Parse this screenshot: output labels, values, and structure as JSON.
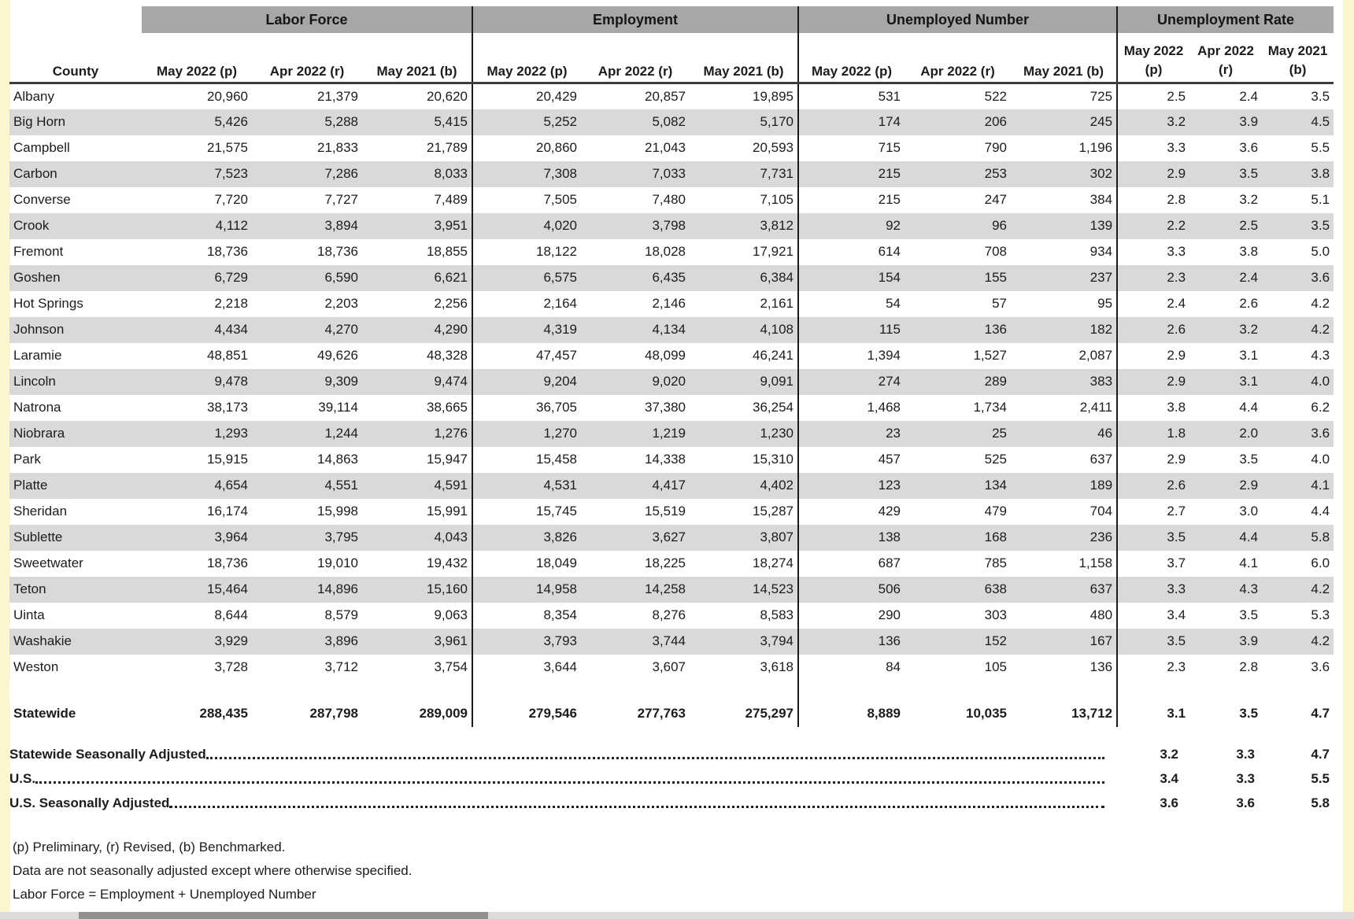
{
  "colors": {
    "page_bg": "#ffffff",
    "edge_yellow": "#fbf6cd",
    "band_gray": "#a7a7a7",
    "stripe": "#d9d9d9",
    "divider": "#1a1a1a",
    "underline": "#3d3d3d",
    "leader_dots": "#222222",
    "text": "#1c1c1c",
    "bottom_light": "#dcdcdc",
    "bottom_dark": "#8f8f8f"
  },
  "table": {
    "county_header": "County",
    "groups": [
      {
        "label": "Labor Force"
      },
      {
        "label": "Employment"
      },
      {
        "label": "Unemployed Number"
      },
      {
        "label": "Unemployment Rate"
      }
    ],
    "col_headers": [
      "May 2022 (p)",
      "Apr 2022 (r)",
      "May 2021 (b)"
    ],
    "rate_col_headers": [
      {
        "line1": "May 2022",
        "line2": "(p)"
      },
      {
        "line1": "Apr 2022",
        "line2": "(r)"
      },
      {
        "line1": "May 2021",
        "line2": "(b)"
      }
    ],
    "rows": [
      {
        "county": "Albany",
        "values": [
          "20,960",
          "21,379",
          "20,620",
          "20,429",
          "20,857",
          "19,895",
          "531",
          "522",
          "725",
          "2.5",
          "2.4",
          "3.5"
        ]
      },
      {
        "county": "Big Horn",
        "values": [
          "5,426",
          "5,288",
          "5,415",
          "5,252",
          "5,082",
          "5,170",
          "174",
          "206",
          "245",
          "3.2",
          "3.9",
          "4.5"
        ]
      },
      {
        "county": "Campbell",
        "values": [
          "21,575",
          "21,833",
          "21,789",
          "20,860",
          "21,043",
          "20,593",
          "715",
          "790",
          "1,196",
          "3.3",
          "3.6",
          "5.5"
        ]
      },
      {
        "county": "Carbon",
        "values": [
          "7,523",
          "7,286",
          "8,033",
          "7,308",
          "7,033",
          "7,731",
          "215",
          "253",
          "302",
          "2.9",
          "3.5",
          "3.8"
        ]
      },
      {
        "county": "Converse",
        "values": [
          "7,720",
          "7,727",
          "7,489",
          "7,505",
          "7,480",
          "7,105",
          "215",
          "247",
          "384",
          "2.8",
          "3.2",
          "5.1"
        ]
      },
      {
        "county": "Crook",
        "values": [
          "4,112",
          "3,894",
          "3,951",
          "4,020",
          "3,798",
          "3,812",
          "92",
          "96",
          "139",
          "2.2",
          "2.5",
          "3.5"
        ]
      },
      {
        "county": "Fremont",
        "values": [
          "18,736",
          "18,736",
          "18,855",
          "18,122",
          "18,028",
          "17,921",
          "614",
          "708",
          "934",
          "3.3",
          "3.8",
          "5.0"
        ]
      },
      {
        "county": "Goshen",
        "values": [
          "6,729",
          "6,590",
          "6,621",
          "6,575",
          "6,435",
          "6,384",
          "154",
          "155",
          "237",
          "2.3",
          "2.4",
          "3.6"
        ]
      },
      {
        "county": "Hot Springs",
        "values": [
          "2,218",
          "2,203",
          "2,256",
          "2,164",
          "2,146",
          "2,161",
          "54",
          "57",
          "95",
          "2.4",
          "2.6",
          "4.2"
        ]
      },
      {
        "county": "Johnson",
        "values": [
          "4,434",
          "4,270",
          "4,290",
          "4,319",
          "4,134",
          "4,108",
          "115",
          "136",
          "182",
          "2.6",
          "3.2",
          "4.2"
        ]
      },
      {
        "county": "Laramie",
        "values": [
          "48,851",
          "49,626",
          "48,328",
          "47,457",
          "48,099",
          "46,241",
          "1,394",
          "1,527",
          "2,087",
          "2.9",
          "3.1",
          "4.3"
        ]
      },
      {
        "county": "Lincoln",
        "values": [
          "9,478",
          "9,309",
          "9,474",
          "9,204",
          "9,020",
          "9,091",
          "274",
          "289",
          "383",
          "2.9",
          "3.1",
          "4.0"
        ]
      },
      {
        "county": "Natrona",
        "values": [
          "38,173",
          "39,114",
          "38,665",
          "36,705",
          "37,380",
          "36,254",
          "1,468",
          "1,734",
          "2,411",
          "3.8",
          "4.4",
          "6.2"
        ]
      },
      {
        "county": "Niobrara",
        "values": [
          "1,293",
          "1,244",
          "1,276",
          "1,270",
          "1,219",
          "1,230",
          "23",
          "25",
          "46",
          "1.8",
          "2.0",
          "3.6"
        ]
      },
      {
        "county": "Park",
        "values": [
          "15,915",
          "14,863",
          "15,947",
          "15,458",
          "14,338",
          "15,310",
          "457",
          "525",
          "637",
          "2.9",
          "3.5",
          "4.0"
        ]
      },
      {
        "county": "Platte",
        "values": [
          "4,654",
          "4,551",
          "4,591",
          "4,531",
          "4,417",
          "4,402",
          "123",
          "134",
          "189",
          "2.6",
          "2.9",
          "4.1"
        ]
      },
      {
        "county": "Sheridan",
        "values": [
          "16,174",
          "15,998",
          "15,991",
          "15,745",
          "15,519",
          "15,287",
          "429",
          "479",
          "704",
          "2.7",
          "3.0",
          "4.4"
        ]
      },
      {
        "county": "Sublette",
        "values": [
          "3,964",
          "3,795",
          "4,043",
          "3,826",
          "3,627",
          "3,807",
          "138",
          "168",
          "236",
          "3.5",
          "4.4",
          "5.8"
        ]
      },
      {
        "county": "Sweetwater",
        "values": [
          "18,736",
          "19,010",
          "19,432",
          "18,049",
          "18,225",
          "18,274",
          "687",
          "785",
          "1,158",
          "3.7",
          "4.1",
          "6.0"
        ]
      },
      {
        "county": "Teton",
        "values": [
          "15,464",
          "14,896",
          "15,160",
          "14,958",
          "14,258",
          "14,523",
          "506",
          "638",
          "637",
          "3.3",
          "4.3",
          "4.2"
        ]
      },
      {
        "county": "Uinta",
        "values": [
          "8,644",
          "8,579",
          "9,063",
          "8,354",
          "8,276",
          "8,583",
          "290",
          "303",
          "480",
          "3.4",
          "3.5",
          "5.3"
        ]
      },
      {
        "county": "Washakie",
        "values": [
          "3,929",
          "3,896",
          "3,961",
          "3,793",
          "3,744",
          "3,794",
          "136",
          "152",
          "167",
          "3.5",
          "3.9",
          "4.2"
        ]
      },
      {
        "county": "Weston",
        "values": [
          "3,728",
          "3,712",
          "3,754",
          "3,644",
          "3,607",
          "3,618",
          "84",
          "105",
          "136",
          "2.3",
          "2.8",
          "3.6"
        ]
      }
    ],
    "statewide": {
      "county": "Statewide",
      "values": [
        "288,435",
        "287,798",
        "289,009",
        "279,546",
        "277,763",
        "275,297",
        "8,889",
        "10,035",
        "13,712",
        "3.1",
        "3.5",
        "4.7"
      ]
    },
    "summary_rows": [
      {
        "label": "Statewide Seasonally Adjusted",
        "rates": [
          "3.2",
          "3.3",
          "4.7"
        ]
      },
      {
        "label": "U.S.",
        "rates": [
          "3.4",
          "3.3",
          "5.5"
        ]
      },
      {
        "label": "U.S. Seasonally Adjusted",
        "rates": [
          "3.6",
          "3.6",
          "5.8"
        ]
      }
    ],
    "footnotes": [
      "(p) Preliminary, (r) Revised, (b) Benchmarked.",
      "Data are not seasonally adjusted except where otherwise specified.",
      "Labor Force = Employment + Unemployed Number"
    ]
  }
}
